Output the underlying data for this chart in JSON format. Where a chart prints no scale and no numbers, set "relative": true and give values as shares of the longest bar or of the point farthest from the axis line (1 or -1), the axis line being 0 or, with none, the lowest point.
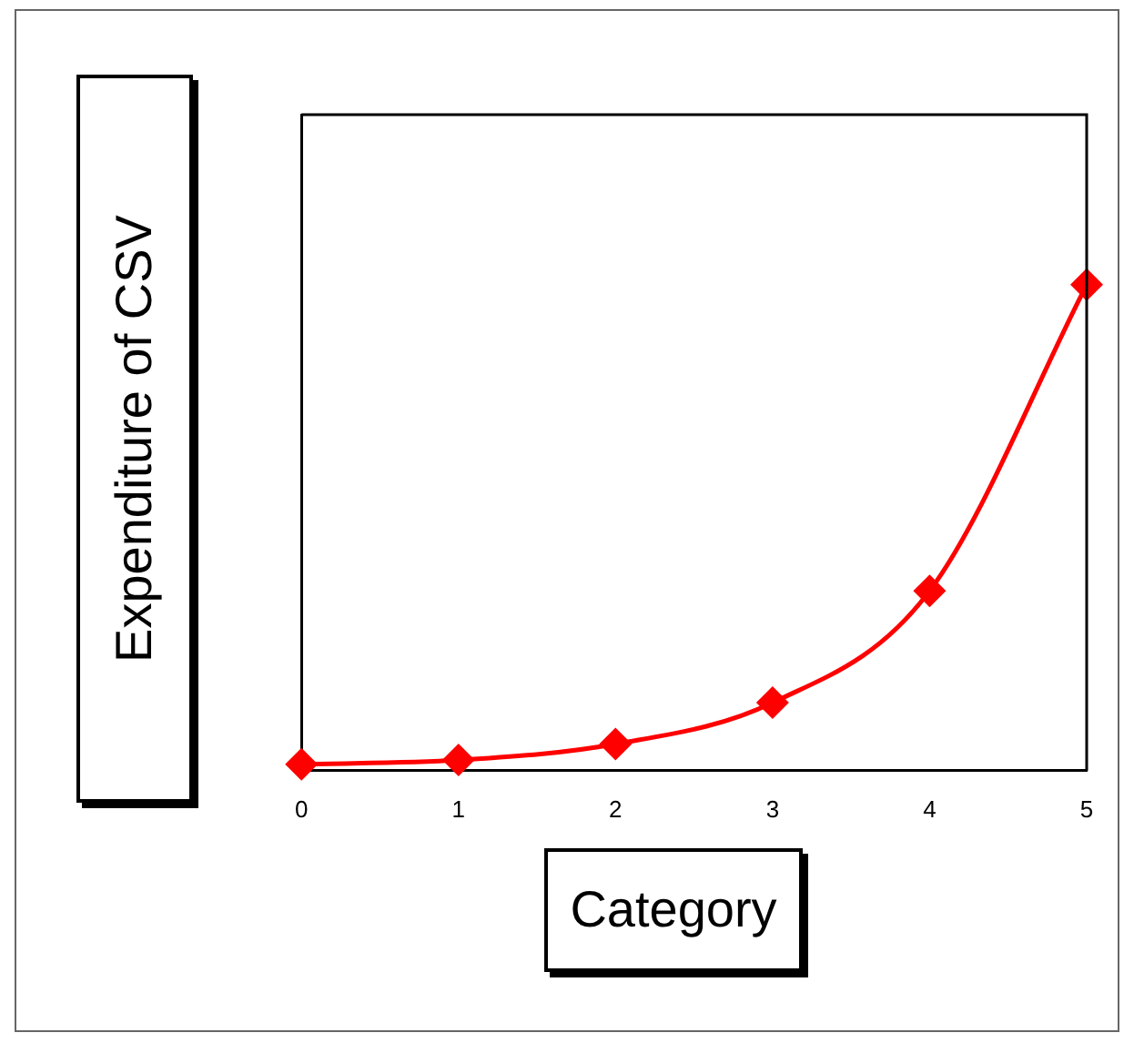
{
  "chart_data": {
    "type": "line",
    "xlabel": "Category",
    "ylabel": "Expenditure of CSV",
    "relative": true,
    "x": [
      0,
      1,
      2,
      3,
      4,
      5
    ],
    "xlim": [
      0,
      5
    ],
    "xticks": [
      0,
      1,
      2,
      3,
      4,
      5
    ],
    "series": [
      {
        "color": "#ff0000",
        "values": [
          0.013,
          0.022,
          0.055,
          0.14,
          0.37,
          1
        ]
      }
    ],
    "marker": "diamond",
    "line_style": "solid",
    "grid": false,
    "legend": false
  }
}
